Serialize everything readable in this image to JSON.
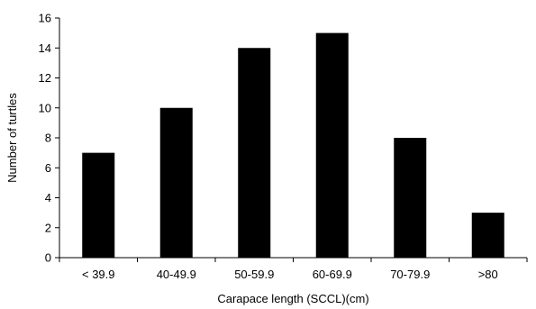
{
  "chart_data": {
    "type": "bar",
    "title": "",
    "xlabel": "Carapace length (SCCL)(cm)",
    "ylabel": "Number of turtles",
    "categories": [
      "< 39.9",
      "40-49.9",
      "50-59.9",
      "60-69.9",
      "70-79.9",
      ">80"
    ],
    "values": [
      7,
      10,
      14,
      15,
      8,
      3
    ],
    "ylim": [
      0,
      16
    ],
    "yticks": [
      0,
      2,
      4,
      6,
      8,
      10,
      12,
      14,
      16
    ],
    "grid": false,
    "legend": "none",
    "bar_color": "#000000"
  }
}
